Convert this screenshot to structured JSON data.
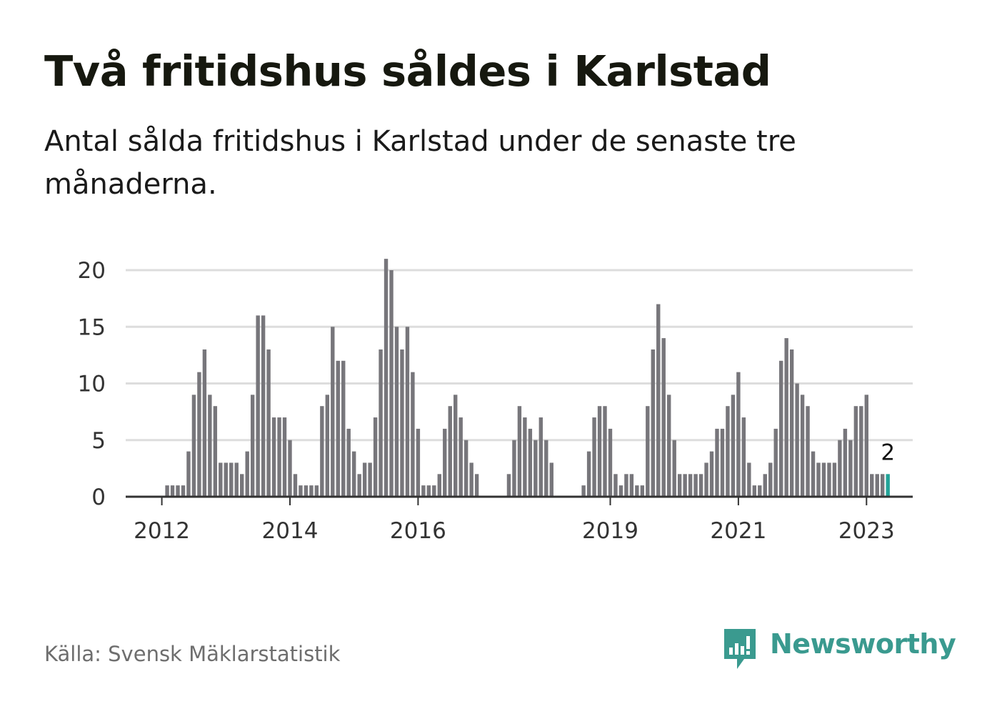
{
  "title": "Två fritidshus såldes i Karlstad",
  "subtitle": "Antal sålda fritidshus i Karlstad under de senaste tre månaderna.",
  "source": "Källa: Svensk Mäklarstatistik",
  "brand": {
    "name": "Newsworthy",
    "icon": "newsworthy-logo-icon"
  },
  "colors": {
    "bar": "#77767b",
    "highlight": "#22a398",
    "grid": "#dddddd",
    "baseline": "#333333",
    "brand": "#3a9a8f"
  },
  "chart_data": {
    "type": "bar",
    "ylim": [
      0,
      22
    ],
    "yticks": [
      0,
      5,
      10,
      15,
      20
    ],
    "xticks": [
      "2012",
      "2014",
      "2016",
      "2019",
      "2021",
      "2023"
    ],
    "start": "2011-07",
    "grid": true,
    "highlight_last": true,
    "last_label": "2",
    "values": [
      0,
      0,
      0,
      0,
      0,
      0,
      0,
      1,
      1,
      1,
      1,
      4,
      9,
      11,
      13,
      9,
      8,
      3,
      3,
      3,
      3,
      2,
      4,
      9,
      16,
      16,
      13,
      7,
      7,
      7,
      5,
      2,
      1,
      1,
      1,
      1,
      8,
      9,
      15,
      12,
      12,
      6,
      4,
      2,
      3,
      3,
      7,
      13,
      21,
      20,
      15,
      13,
      15,
      11,
      6,
      1,
      1,
      1,
      2,
      6,
      8,
      9,
      7,
      5,
      3,
      2,
      0,
      0,
      0,
      0,
      0,
      2,
      5,
      8,
      7,
      6,
      5,
      7,
      5,
      3,
      0,
      0,
      0,
      0,
      0,
      1,
      4,
      7,
      8,
      8,
      6,
      2,
      1,
      2,
      2,
      1,
      1,
      8,
      13,
      17,
      14,
      9,
      5,
      2,
      2,
      2,
      2,
      2,
      3,
      4,
      6,
      6,
      8,
      9,
      11,
      7,
      3,
      1,
      1,
      2,
      3,
      6,
      12,
      14,
      13,
      10,
      9,
      8,
      4,
      3,
      3,
      3,
      3,
      5,
      6,
      5,
      8,
      8,
      9,
      2,
      2,
      2,
      2
    ]
  }
}
